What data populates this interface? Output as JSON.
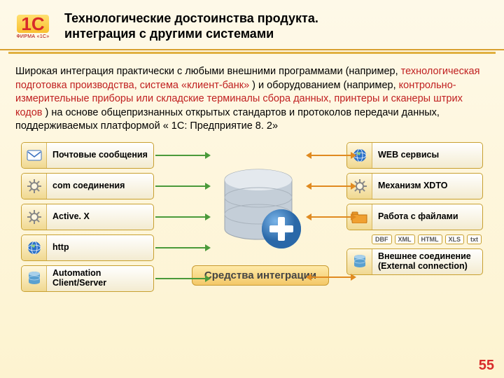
{
  "colors": {
    "header_border": "#d8a030",
    "gold_bar": "#e0b040",
    "accent_red": "#c02020",
    "box_border": "#c8a030",
    "arrow_green": "#4a9a3a",
    "arrow_orange": "#e08a20",
    "bg_top": "#fef9e8",
    "bg_bottom": "#fdf3d0"
  },
  "logo": {
    "brand": "1C",
    "sub": "ФИРМА «1С»",
    "reg": "®"
  },
  "title": {
    "line1": "Технологические достоинства продукта.",
    "line2": "интеграция с другими системами"
  },
  "paragraph": {
    "pre": "Широкая интеграция практически с любыми внешними программами (например, ",
    "hl1": "технологическая подготовка производства, система «клиент-банк» ",
    "mid": ") и оборудованием (например, ",
    "hl2": "контрольно-измерительные приборы или складские терминалы сбора данных, принтеры и сканеры штрих кодов",
    "post": ") на основе общепризнанных открытых стандартов и протоколов передачи данных, поддерживаемых платформой « 1С: Предприятие 8. 2»"
  },
  "diagram": {
    "center_label": "Средства интеграции",
    "left": [
      {
        "label": "Почтовые сообщения",
        "icon": "envelope",
        "icon_color": "#3a70c0"
      },
      {
        "label": "com соединения",
        "icon": "gear",
        "icon_color": "#888888"
      },
      {
        "label": "Active. X",
        "icon": "gear",
        "icon_color": "#888888"
      },
      {
        "label": "http",
        "icon": "globe",
        "icon_color": "#2a70c8"
      },
      {
        "label": "Automation Client/Server",
        "icon": "db",
        "icon_color": "#5aa0d0"
      }
    ],
    "right": [
      {
        "label": "WEB сервисы",
        "icon": "globe",
        "icon_color": "#2a70c8"
      },
      {
        "label": "Механизм XDTO",
        "icon": "gear",
        "icon_color": "#888888"
      },
      {
        "label": "Работа с файлами",
        "icon": "folder",
        "icon_color": "#f0a030"
      },
      {
        "chips": [
          "DBF",
          "XML",
          "HTML",
          "XLS",
          "txt"
        ]
      },
      {
        "label": "Внешнее соединение (External connection)",
        "icon": "db",
        "icon_color": "#5aa0d0"
      }
    ],
    "db_icon": {
      "body": "#c8d0d8",
      "plus_bg": "#3a80c0",
      "plus_fg": "#ffffff"
    },
    "left_arrow_tops": [
      24,
      68,
      112,
      156,
      200
    ],
    "right_arrow_tops": [
      24,
      68,
      112,
      198
    ]
  },
  "page_number": "55"
}
